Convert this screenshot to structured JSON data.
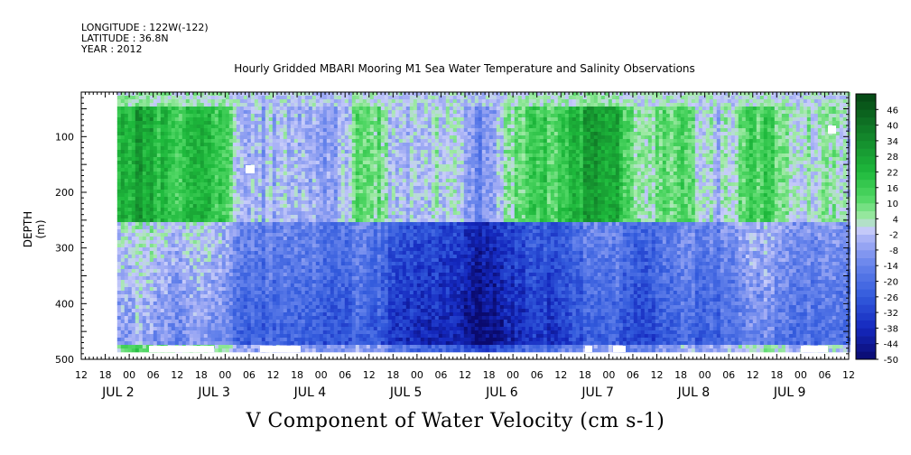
{
  "header": {
    "longitude": "LONGITUDE : 122W(-122)",
    "latitude": "LATITUDE : 36.8N",
    "year": "YEAR : 2012"
  },
  "chart_data": {
    "type": "heatmap",
    "title": "Hourly Gridded MBARI Mooring M1 Sea Water Temperature and Salinity Observations",
    "ylabel": "DEPTH (m)",
    "xlabel": "V Component of Water Velocity (cm s-1)",
    "ylim": [
      500,
      20
    ],
    "y_reversed": true,
    "y_ticks": [
      100,
      200,
      300,
      400,
      500
    ],
    "x_hour_ticks": [
      "12",
      "18",
      "00",
      "06",
      "12",
      "18",
      "00",
      "06",
      "12",
      "18",
      "00",
      "06",
      "12",
      "18",
      "00",
      "06",
      "12",
      "18",
      "00",
      "06",
      "12",
      "18",
      "00",
      "06",
      "12",
      "18",
      "00",
      "06",
      "12",
      "18",
      "00",
      "06",
      "12"
    ],
    "x_day_labels": [
      "JUL 2",
      "JUL 3",
      "JUL 4",
      "JUL 5",
      "JUL 6",
      "JUL 7",
      "JUL 8",
      "JUL 9"
    ],
    "x_range_hours": [
      12,
      204
    ],
    "data_start_hour": 21,
    "data_depth_range": [
      20,
      485
    ],
    "colorbar": {
      "levels": [
        "46",
        "40",
        "34",
        "28",
        "22",
        "16",
        "10",
        "4",
        "-2",
        "-8",
        "-14",
        "-20",
        "-26",
        "-32",
        "-38",
        "-44",
        "-50"
      ],
      "range": [
        -50,
        52
      ]
    },
    "pattern": "Positive (green) velocities dominate the upper ~20-250 m in vertical bands; negative (blue) velocities dominate below ~250 m, strongest around Jul 5-6 at 350-450 m."
  }
}
